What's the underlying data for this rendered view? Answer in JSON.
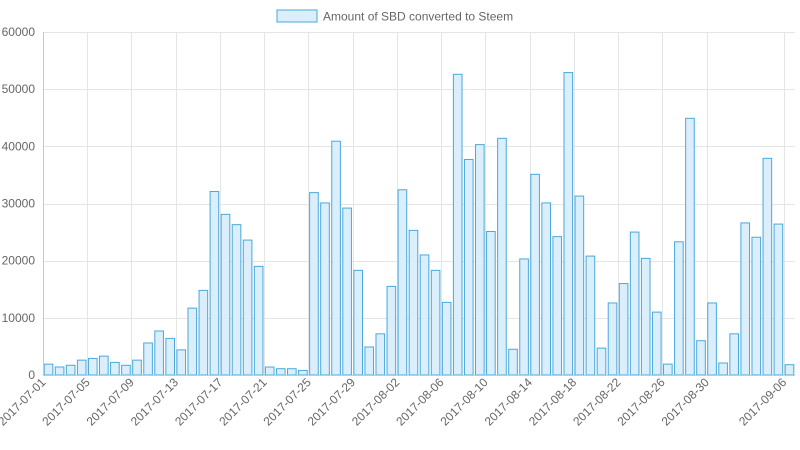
{
  "chart_data": {
    "type": "bar",
    "title": "",
    "xlabel": "",
    "ylabel": "",
    "ylim": [
      0,
      60000
    ],
    "y_ticks": [
      0,
      10000,
      20000,
      30000,
      40000,
      50000,
      60000
    ],
    "grid": true,
    "legend_position": "top",
    "series": [
      {
        "name": "Amount of SBD converted to Steem",
        "fill_color": "#dbeefb",
        "border_color": "#49a9dc",
        "values": [
          1900,
          1400,
          1700,
          2600,
          2900,
          3300,
          2200,
          1700,
          2600,
          5600,
          7700,
          6400,
          4400,
          11700,
          14800,
          32100,
          28100,
          26300,
          23600,
          19000,
          1400,
          1100,
          1100,
          800,
          31900,
          30100,
          40900,
          29200,
          18300,
          4900,
          7200,
          15500,
          32400,
          25300,
          21000,
          18300,
          12700,
          52600,
          37700,
          40300,
          25100,
          41400,
          4500,
          20300,
          35100,
          30100,
          24200,
          52900,
          31300,
          20800,
          4700,
          12600,
          16000,
          25000,
          20400,
          11000,
          1900,
          23300,
          44900,
          6000,
          12600,
          2100,
          7200,
          26600,
          24100,
          37900,
          26400,
          1800
        ]
      }
    ],
    "categories": [
      "2017-07-01",
      "2017-07-02",
      "2017-07-03",
      "2017-07-04",
      "2017-07-05",
      "2017-07-06",
      "2017-07-07",
      "2017-07-08",
      "2017-07-09",
      "2017-07-10",
      "2017-07-11",
      "2017-07-12",
      "2017-07-13",
      "2017-07-14",
      "2017-07-15",
      "2017-07-16",
      "2017-07-17",
      "2017-07-18",
      "2017-07-19",
      "2017-07-20",
      "2017-07-21",
      "2017-07-22",
      "2017-07-23",
      "2017-07-24",
      "2017-07-25",
      "2017-07-26",
      "2017-07-27",
      "2017-07-28",
      "2017-07-29",
      "2017-07-30",
      "2017-07-31",
      "2017-08-01",
      "2017-08-02",
      "2017-08-03",
      "2017-08-04",
      "2017-08-05",
      "2017-08-06",
      "2017-08-07",
      "2017-08-08",
      "2017-08-09",
      "2017-08-10",
      "2017-08-11",
      "2017-08-12",
      "2017-08-13",
      "2017-08-14",
      "2017-08-15",
      "2017-08-16",
      "2017-08-17",
      "2017-08-18",
      "2017-08-19",
      "2017-08-20",
      "2017-08-21",
      "2017-08-22",
      "2017-08-23",
      "2017-08-24",
      "2017-08-25",
      "2017-08-26",
      "2017-08-27",
      "2017-08-28",
      "2017-08-29",
      "2017-08-30",
      "2017-08-31",
      "2017-09-01",
      "2017-09-02",
      "2017-09-03",
      "2017-09-04",
      "2017-09-05",
      "2017-09-06"
    ],
    "x_tick_labels": [
      "2017-07-01",
      "2017-07-05",
      "2017-07-09",
      "2017-07-13",
      "2017-07-17",
      "2017-07-21",
      "2017-07-25",
      "2017-07-29",
      "2017-08-02",
      "2017-08-06",
      "2017-08-10",
      "2017-08-14",
      "2017-08-18",
      "2017-08-22",
      "2017-08-26",
      "2017-08-30",
      "2017-09-06"
    ]
  }
}
